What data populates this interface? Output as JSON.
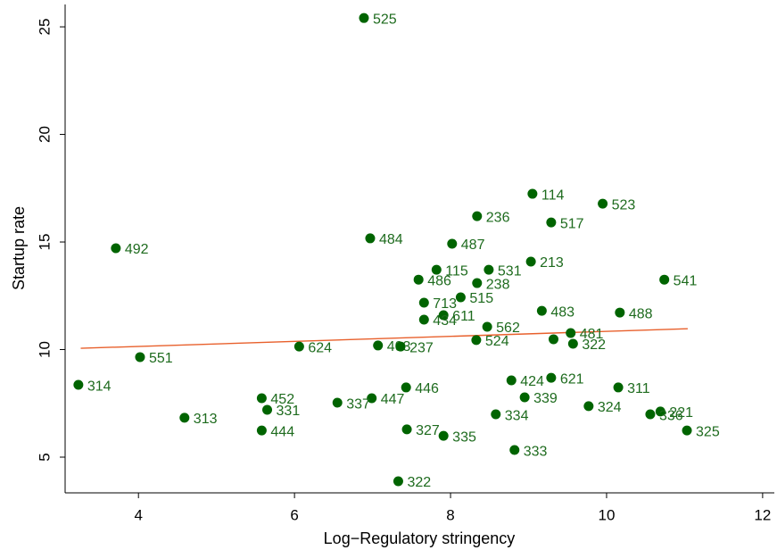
{
  "chart_data": {
    "type": "scatter",
    "x_label": "Log−Regulatory stringency",
    "y_label": "Startup rate",
    "xlim": [
      3.06,
      12.15
    ],
    "ylim": [
      3.34,
      26.04
    ],
    "xticks": [
      4,
      6,
      8,
      10,
      12
    ],
    "yticks": [
      5,
      10,
      15,
      20,
      25
    ],
    "color": "#006400",
    "fit": {
      "color": "#e8602c",
      "x": [
        3.26,
        11.04
      ],
      "values": [
        10.06,
        10.97
      ]
    },
    "labels": [
      "525",
      "114",
      "523",
      "236",
      "517",
      "492",
      "484",
      "487",
      "115",
      "531",
      "213",
      "486",
      "238",
      "541",
      "515",
      "713",
      "611",
      "434",
      "483",
      "488",
      "562",
      "481",
      null,
      "524",
      "322",
      "624",
      "403",
      "237",
      "551",
      "314",
      "621",
      "424",
      "311",
      "446",
      "339",
      "452",
      "447",
      "337",
      "331",
      "324",
      "221",
      "336",
      "334",
      "313",
      "444",
      "327",
      "325",
      "335",
      "333",
      "322"
    ],
    "x": [
      6.89,
      9.05,
      9.95,
      8.34,
      9.29,
      3.71,
      6.97,
      8.02,
      7.82,
      8.49,
      9.03,
      7.59,
      8.34,
      10.74,
      8.13,
      7.66,
      7.91,
      7.66,
      9.17,
      10.17,
      8.47,
      9.54,
      9.32,
      8.33,
      9.57,
      6.06,
      7.07,
      7.36,
      4.02,
      3.23,
      9.29,
      8.78,
      10.15,
      7.43,
      8.95,
      5.58,
      6.99,
      6.55,
      5.65,
      9.77,
      10.69,
      10.56,
      8.58,
      4.59,
      5.58,
      7.44,
      11.03,
      7.91,
      8.82,
      7.33
    ],
    "values": [
      25.41,
      17.24,
      16.78,
      16.2,
      15.91,
      14.71,
      15.17,
      14.92,
      13.71,
      13.71,
      14.09,
      13.25,
      13.09,
      13.25,
      12.43,
      12.18,
      11.6,
      11.39,
      11.8,
      11.72,
      11.06,
      10.77,
      10.48,
      10.44,
      10.27,
      10.14,
      10.19,
      10.14,
      9.65,
      8.36,
      8.69,
      8.57,
      8.24,
      8.24,
      7.78,
      7.74,
      7.74,
      7.53,
      7.2,
      7.37,
      7.12,
      6.99,
      6.99,
      6.83,
      6.24,
      6.29,
      6.24,
      5.99,
      5.33,
      3.88
    ]
  }
}
